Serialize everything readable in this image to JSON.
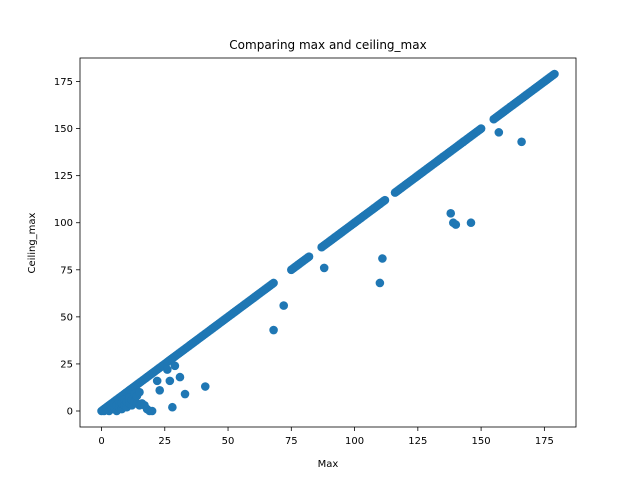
{
  "chart_data": {
    "type": "scatter",
    "title": "Comparing max and ceiling_max",
    "xlabel": "Max",
    "ylabel": "Ceiling_max",
    "xlim": [
      -8.5,
      187.5
    ],
    "ylim": [
      -8.5,
      187.5
    ],
    "xticks": [
      0,
      25,
      50,
      75,
      100,
      125,
      150,
      175
    ],
    "yticks": [
      0,
      25,
      50,
      75,
      100,
      125,
      150,
      175
    ],
    "grid": false,
    "legend": "none",
    "marker_color": "#1f77b4",
    "diagonal_segments": [
      {
        "x0": 0,
        "x1": 68,
        "step": 0.5
      },
      {
        "x0": 75,
        "x1": 82,
        "step": 0.5
      },
      {
        "x0": 87,
        "x1": 100,
        "step": 0.5
      },
      {
        "x0": 100,
        "x1": 112,
        "step": 0.5
      },
      {
        "x0": 116,
        "x1": 135,
        "step": 0.5
      },
      {
        "x0": 135,
        "x1": 143,
        "step": 0.5
      },
      {
        "x0": 143,
        "x1": 150,
        "step": 0.5
      },
      {
        "x0": 155,
        "x1": 179,
        "step": 0.5
      }
    ],
    "off_diagonal_points": [
      {
        "x": 1,
        "y": 0
      },
      {
        "x": 2,
        "y": 1
      },
      {
        "x": 3,
        "y": 0
      },
      {
        "x": 4,
        "y": 1
      },
      {
        "x": 5,
        "y": 2
      },
      {
        "x": 5,
        "y": 4
      },
      {
        "x": 6,
        "y": 0
      },
      {
        "x": 6,
        "y": 3
      },
      {
        "x": 7,
        "y": 2
      },
      {
        "x": 7,
        "y": 5
      },
      {
        "x": 8,
        "y": 1
      },
      {
        "x": 8,
        "y": 4
      },
      {
        "x": 9,
        "y": 3
      },
      {
        "x": 9,
        "y": 6
      },
      {
        "x": 10,
        "y": 2
      },
      {
        "x": 10,
        "y": 5
      },
      {
        "x": 11,
        "y": 4
      },
      {
        "x": 11,
        "y": 7
      },
      {
        "x": 12,
        "y": 3
      },
      {
        "x": 12,
        "y": 6
      },
      {
        "x": 13,
        "y": 5
      },
      {
        "x": 13,
        "y": 9
      },
      {
        "x": 14,
        "y": 4
      },
      {
        "x": 14,
        "y": 8
      },
      {
        "x": 15,
        "y": 3
      },
      {
        "x": 15,
        "y": 10
      },
      {
        "x": 16,
        "y": 4
      },
      {
        "x": 17,
        "y": 3
      },
      {
        "x": 18,
        "y": 1
      },
      {
        "x": 19,
        "y": 0
      },
      {
        "x": 20,
        "y": 0
      },
      {
        "x": 22,
        "y": 16
      },
      {
        "x": 23,
        "y": 11
      },
      {
        "x": 26,
        "y": 22
      },
      {
        "x": 27,
        "y": 16
      },
      {
        "x": 28,
        "y": 2
      },
      {
        "x": 29,
        "y": 24
      },
      {
        "x": 31,
        "y": 18
      },
      {
        "x": 33,
        "y": 9
      },
      {
        "x": 41,
        "y": 13
      },
      {
        "x": 68,
        "y": 43
      },
      {
        "x": 72,
        "y": 56
      },
      {
        "x": 88,
        "y": 76
      },
      {
        "x": 110,
        "y": 68
      },
      {
        "x": 111,
        "y": 81
      },
      {
        "x": 138,
        "y": 105
      },
      {
        "x": 139,
        "y": 100
      },
      {
        "x": 140,
        "y": 99
      },
      {
        "x": 146,
        "y": 100
      },
      {
        "x": 157,
        "y": 148
      },
      {
        "x": 166,
        "y": 143
      }
    ]
  }
}
